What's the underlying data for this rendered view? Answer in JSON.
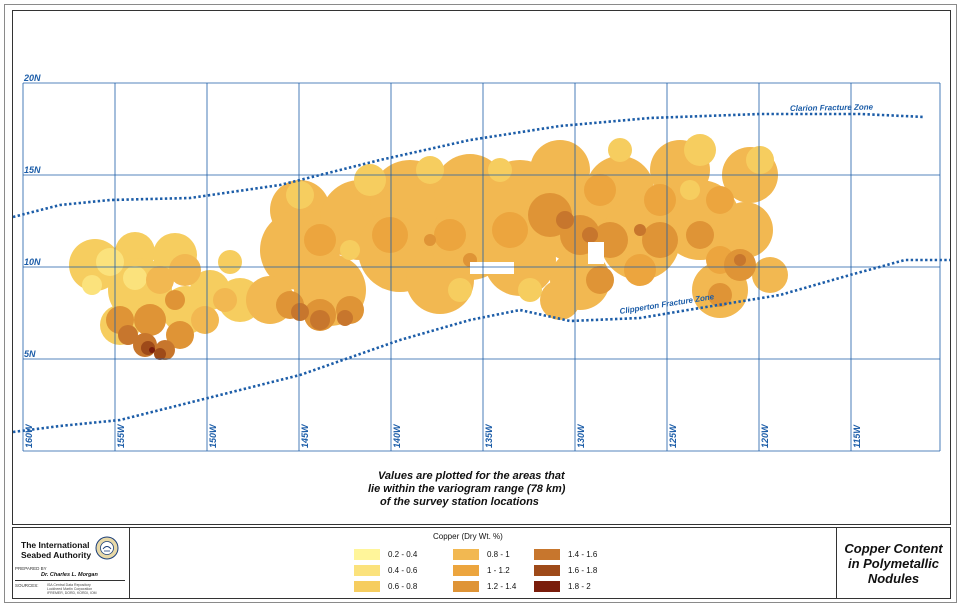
{
  "map": {
    "latitude_labels": [
      "20N",
      "15N",
      "10N",
      "5N"
    ],
    "longitude_labels": [
      "160W",
      "155W",
      "150W",
      "145W",
      "140W",
      "135W",
      "130W",
      "125W",
      "120W",
      "115W"
    ],
    "fracture_zones": [
      "Clarion Fracture Zone",
      "Clipperton Fracture Zone"
    ],
    "note_lines": [
      "Values are plotted for the areas that",
      "lie within the variogram range (78 km)",
      "of the survey station locations"
    ]
  },
  "credits": {
    "organization": "The International Seabed Authority",
    "prepared_by_label": "PREPARED BY",
    "prepared_by_name": "Dr. Charles L. Morgan",
    "sources_label": "SOURCES:",
    "sources_lines": [
      "ISA Central Data Repository",
      "Lockheed Martin Corporation",
      "IFREMER, DORD, KORDI, IOM"
    ]
  },
  "legend": {
    "title": "Copper (Dry Wt. %)",
    "items": [
      {
        "label": "0.2 - 0.4",
        "color": "#fff59a"
      },
      {
        "label": "0.4 - 0.6",
        "color": "#fbe27c"
      },
      {
        "label": "0.6 - 0.8",
        "color": "#f6cd5f"
      },
      {
        "label": "0.8 - 1",
        "color": "#f2b851"
      },
      {
        "label": "1 - 1.2",
        "color": "#eca53e"
      },
      {
        "label": "1.2 - 1.4",
        "color": "#df9436"
      },
      {
        "label": "1.4 - 1.6",
        "color": "#c7762d"
      },
      {
        "label": "1.6 - 1.8",
        "color": "#9e4a19"
      },
      {
        "label": "1.8 - 2",
        "color": "#7a1d0b"
      }
    ]
  },
  "title": {
    "lines": [
      "Copper Content",
      "in Polymetallic",
      "Nodules"
    ]
  },
  "colors": {
    "grid": "#1c5da8",
    "label": "#1c5da8"
  }
}
